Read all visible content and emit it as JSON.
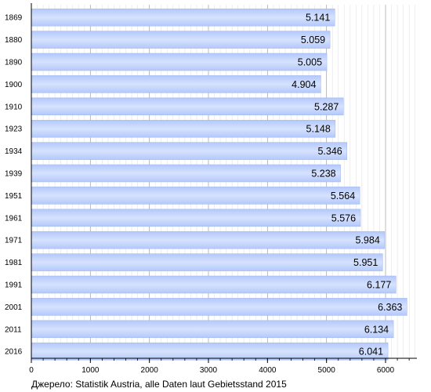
{
  "chart_data": {
    "type": "bar",
    "orientation": "horizontal",
    "categories": [
      "1869",
      "1880",
      "1890",
      "1900",
      "1910",
      "1923",
      "1934",
      "1939",
      "1951",
      "1961",
      "1971",
      "1981",
      "1991",
      "2001",
      "2011",
      "2016"
    ],
    "values": [
      5141,
      5059,
      5005,
      4904,
      5287,
      5148,
      5346,
      5238,
      5564,
      5576,
      5984,
      5951,
      6177,
      6363,
      6134,
      6041
    ],
    "value_labels": [
      "5.141",
      "5.059",
      "5.005",
      "4.904",
      "5.287",
      "5.148",
      "5.346",
      "5.238",
      "5.564",
      "5.576",
      "5.984",
      "5.951",
      "6.177",
      "6.363",
      "6.134",
      "6.041"
    ],
    "x_ticks": [
      0,
      1000,
      2000,
      3000,
      4000,
      5000,
      6000
    ],
    "xlim": [
      0,
      6500
    ],
    "grid": "vertical",
    "legend": "none",
    "colors": {
      "bar": "#b3c8fb",
      "bar_light": "#d6e2fd",
      "value_label": "#000000",
      "grid_minor": "#e3e3e3",
      "grid_major": "#aaaaaa",
      "axis": "#000000"
    }
  },
  "source_text": "Джерело: Statistik Austria, alle Daten laut Gebietsstand 2015"
}
